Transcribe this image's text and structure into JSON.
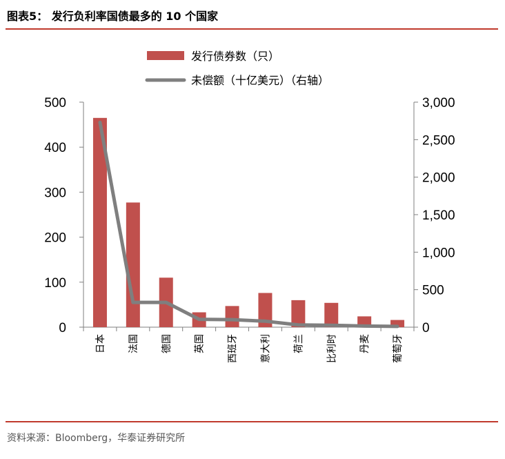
{
  "figure": {
    "title": "图表5：  发行负利率国债最多的 10 个国家",
    "source": "资料来源：Bloomberg，华泰证券研究所"
  },
  "chart_data": {
    "type": "bar",
    "categories": [
      "日本",
      "法国",
      "德国",
      "英国",
      "西班牙",
      "意大利",
      "荷兰",
      "比利时",
      "丹麦",
      "葡萄牙"
    ],
    "series": [
      {
        "name": "发行债券数（只）",
        "type": "bar",
        "axis": "left",
        "color": "#c0504d",
        "values": [
          465,
          277,
          110,
          33,
          47,
          76,
          60,
          54,
          24,
          16
        ]
      },
      {
        "name": "未偿额（十亿美元）（右轴）",
        "type": "line",
        "axis": "right",
        "color": "#7f7f7f",
        "values": [
          2730,
          330,
          330,
          105,
          100,
          80,
          30,
          25,
          15,
          10
        ]
      }
    ],
    "y_left": {
      "ylim": [
        0,
        500
      ],
      "ticks": [
        0,
        100,
        200,
        300,
        400,
        500
      ],
      "tick_labels": [
        "0",
        "100",
        "200",
        "300",
        "400",
        "500"
      ]
    },
    "y_right": {
      "ylim": [
        0,
        3000
      ],
      "ticks": [
        0,
        500,
        1000,
        1500,
        2000,
        2500,
        3000
      ],
      "tick_labels": [
        "0",
        "500",
        "1,000",
        "1,500",
        "2,000",
        "2,500",
        "3,000"
      ]
    },
    "legend_position": "top",
    "grid": false
  }
}
